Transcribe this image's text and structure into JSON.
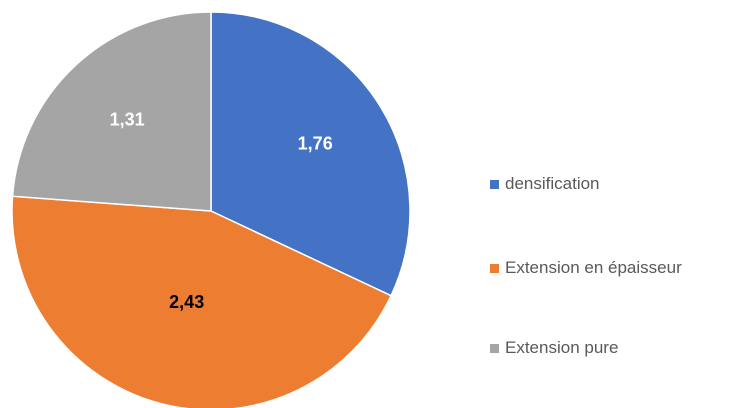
{
  "chart_data": {
    "type": "pie",
    "categories": [
      "densification",
      "Extension en épaisseur",
      "Extension pure"
    ],
    "values": [
      1.76,
      2.43,
      1.31
    ],
    "value_labels": [
      "1,76",
      "2,43",
      "1,31"
    ],
    "colors": [
      "#4472C4",
      "#ED7D31",
      "#A5A5A5"
    ],
    "label_colors": [
      "#ffffff",
      "#000000",
      "#ffffff"
    ],
    "start_angle_deg": 0,
    "direction": "clockwise",
    "legend_position": "right",
    "title": ""
  }
}
